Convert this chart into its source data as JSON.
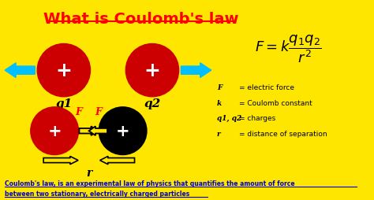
{
  "background_color": "#FFE600",
  "title": "What is Coulomb's law",
  "title_color": "#FF0000",
  "title_fontsize": 14,
  "bottom_text_line1": "Coulomb's law, is an experimental law of physics that quantifies the amount of force",
  "bottom_text_line2": "between two stationary, electrically charged particles",
  "bottom_text_color": "#0000CD",
  "formula_color": "#000000",
  "red_circle_color": "#CC0000",
  "black_circle_color": "#000000",
  "white_text_color": "#FFFFFF",
  "red_label_color": "#FF0000",
  "cyan_arrow_color": "#00BFFF",
  "legend_items": [
    [
      "F",
      "= electric force"
    ],
    [
      "k",
      "= Coulomb constant"
    ],
    [
      "q1, q2",
      "= charges"
    ],
    [
      "r",
      "= distance of separation"
    ]
  ]
}
